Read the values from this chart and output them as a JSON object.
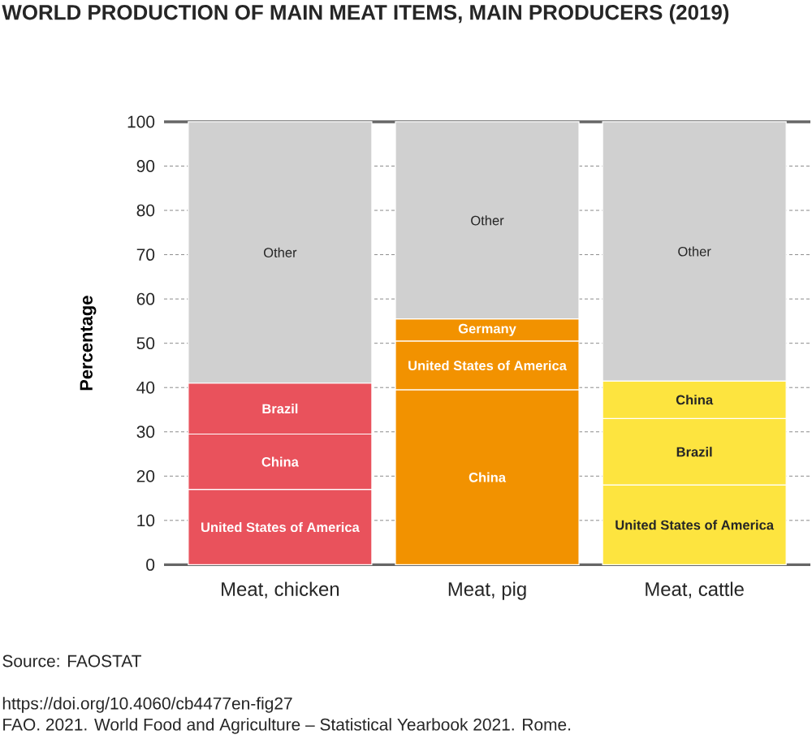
{
  "chart_data": {
    "type": "bar",
    "stacked": true,
    "title": "WORLD PRODUCTION OF MAIN MEAT ITEMS, MAIN PRODUCERS (2019)",
    "ylabel": "Percentage",
    "categories": [
      "Meat, chicken",
      "Meat, pig",
      "Meat, cattle"
    ],
    "series": [
      {
        "values": [
          17,
          39.5,
          18
        ],
        "colors": [
          "#e9525c",
          "#f29200",
          "#fde43f"
        ],
        "value_labels": [
          "United States of America",
          "China",
          "United States of America"
        ]
      },
      {
        "values": [
          12.5,
          11,
          15
        ],
        "colors": [
          "#e9525c",
          "#f29200",
          "#fde43f"
        ],
        "value_labels": [
          "China",
          "United States of America",
          "Brazil"
        ]
      },
      {
        "values": [
          11.5,
          5,
          8.5
        ],
        "colors": [
          "#e9525c",
          "#f29200",
          "#fde43f"
        ],
        "value_labels": [
          "Brazil",
          "Germany",
          "China"
        ]
      },
      {
        "values": [
          59,
          44.5,
          58.5
        ],
        "colors": [
          "#d0d0d0",
          "#d0d0d0",
          "#d0d0d0"
        ],
        "value_labels": [
          "Other",
          "Other",
          "Other"
        ]
      }
    ],
    "ylim": [
      0,
      100
    ],
    "yticks": [
      0,
      10,
      20,
      30,
      40,
      50,
      60,
      70,
      80,
      90,
      100
    ],
    "grid": "y",
    "annotations": [
      "Source: FAOSTAT",
      "https://doi.org/10.4060/cb4477en-fig27",
      "FAO. 2021. World Food and Agriculture – Statistical Yearbook 2021. Rome."
    ]
  }
}
